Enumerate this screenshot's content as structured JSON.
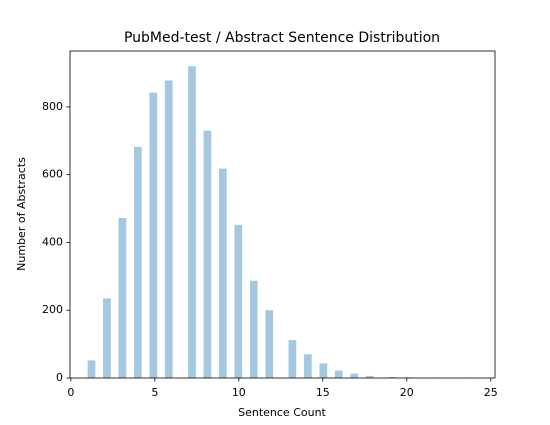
{
  "chart_data": {
    "type": "histogram",
    "title": "PubMed-test / Abstract Sentence Distribution",
    "xlabel": "Sentence Count",
    "ylabel": "Number of Abstracts",
    "color": "#a5c8e1",
    "bins": [
      1,
      1.46,
      1.92,
      2.38,
      2.84,
      3.3,
      3.76,
      4.22,
      4.68,
      5.14,
      5.6,
      6.06,
      6.52,
      6.98,
      7.44,
      7.9,
      8.36,
      8.82,
      9.28,
      9.74,
      10.2,
      10.66,
      11.12,
      11.58,
      12.04,
      12.5,
      12.96,
      13.42,
      13.88,
      14.34,
      14.8,
      15.26,
      15.72,
      16.18,
      16.64,
      17.1,
      17.56,
      18.02,
      18.48,
      18.94,
      19.4,
      19.86,
      20.32,
      20.78,
      21.24,
      21.7,
      22.16,
      22.62,
      23.08,
      23.54,
      24
    ],
    "values": [
      52,
      0,
      235,
      0,
      472,
      0,
      682,
      0,
      842,
      0,
      878,
      0,
      0,
      920,
      0,
      730,
      0,
      618,
      0,
      452,
      0,
      287,
      0,
      200,
      0,
      0,
      112,
      0,
      70,
      0,
      43,
      0,
      22,
      0,
      13,
      0,
      6,
      0,
      0,
      3,
      0,
      2,
      0,
      1,
      0,
      1,
      0,
      0,
      0,
      1
    ],
    "xlim": [
      -0.05,
      25.25
    ],
    "xticks": [
      0,
      5,
      10,
      15,
      20,
      25
    ],
    "ylim": [
      0,
      965
    ],
    "yticks": [
      0,
      200,
      400,
      600,
      800
    ]
  }
}
